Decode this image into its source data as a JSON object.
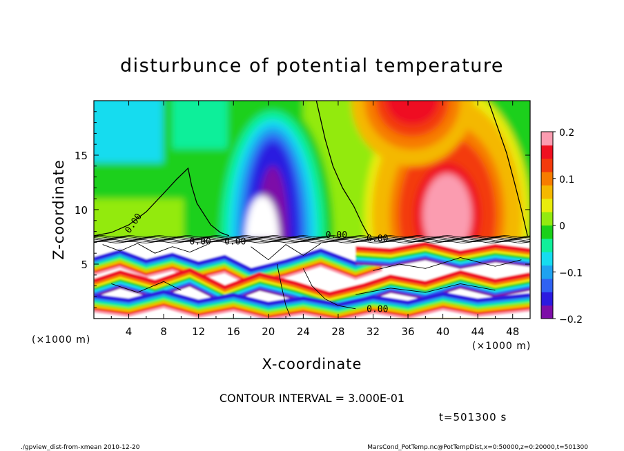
{
  "chart_data": {
    "type": "heatmap",
    "title": "disturbunce of potential temperature",
    "xlabel": "X-coordinate",
    "ylabel": "Z-coordinate",
    "x_unit_label": "(×1000 m)",
    "y_unit_label": "(×1000 m)",
    "xlim": [
      0,
      50
    ],
    "ylim": [
      0,
      20
    ],
    "x_ticks": [
      4,
      8,
      12,
      16,
      20,
      24,
      28,
      32,
      36,
      40,
      44,
      48
    ],
    "y_ticks": [
      5,
      10,
      15
    ],
    "colorbar": {
      "min": -0.2,
      "max": 0.2,
      "tick_values": [
        0.2,
        0.1,
        0,
        -0.1,
        -0.2
      ],
      "tick_labels": [
        "0.2",
        "0.1",
        "0",
        "−0.1",
        "−0.2"
      ]
    },
    "contour_interval_text": "CONTOUR INTERVAL = 3.000E-01",
    "contour_labels": [
      "0.00",
      "0.00",
      "0.00",
      "0.00",
      "0.00",
      "0.00"
    ],
    "features": [
      {
        "name": "negative plume",
        "x_range": [
          14,
          26
        ],
        "z_range": [
          7,
          20
        ],
        "min_value": -0.2
      },
      {
        "name": "positive region",
        "x_range": [
          33,
          49
        ],
        "z_range": [
          7,
          20
        ],
        "max_value": 0.2
      },
      {
        "name": "positive top band",
        "x_range": [
          32,
          40
        ],
        "z_range": [
          18,
          20
        ],
        "max_value": 0.2
      }
    ],
    "time_label": "t=501300 s",
    "grid": false
  },
  "footer": {
    "left": "./gpview_dist-from-xmean  2010-12-20",
    "right": "MarsCond_PotTemp.nc@PotTempDist,x=0:50000,z=0:20000,t=501300"
  },
  "colors": {
    "colormap": [
      "#7d0ea8",
      "#2b1ae0",
      "#2f62f2",
      "#1fa2f0",
      "#16dcef",
      "#10ef9a",
      "#1ad01a",
      "#93ea10",
      "#e9ec0c",
      "#f4b800",
      "#f77c00",
      "#f33a0c",
      "#ef1020",
      "#fb9cb0"
    ],
    "frame": "#000000",
    "background": "#ffffff"
  }
}
